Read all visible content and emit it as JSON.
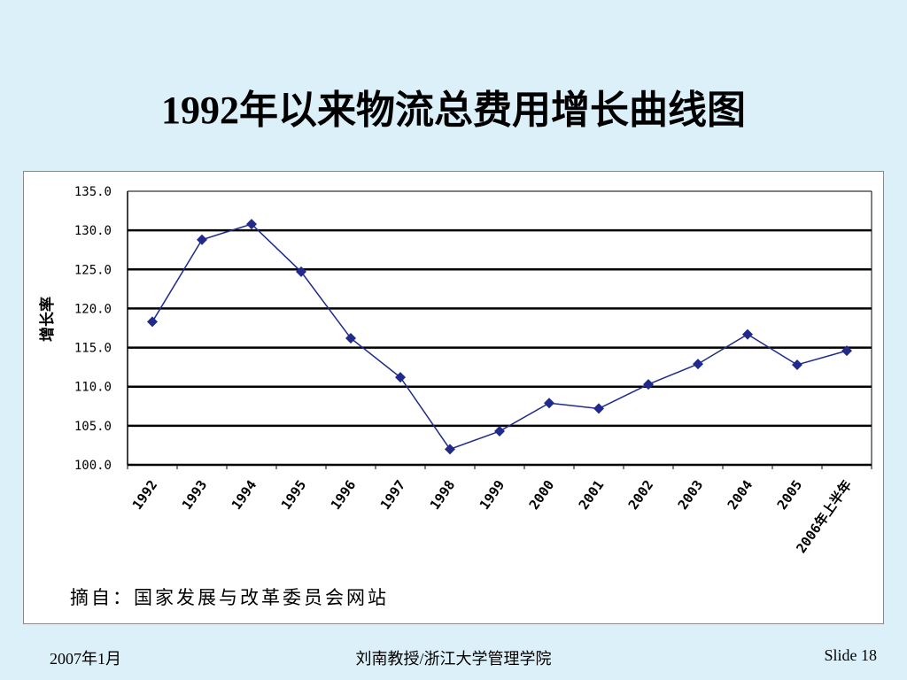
{
  "slide": {
    "title": "1992年以来物流总费用增长曲线图",
    "footer_left": "2007年1月",
    "footer_center": "刘南教授/浙江大学管理学院",
    "footer_right": "Slide 18"
  },
  "chart_data": {
    "type": "line",
    "title": "",
    "xlabel": "",
    "ylabel": "增长率",
    "categories": [
      "1992",
      "1993",
      "1994",
      "1995",
      "1996",
      "1997",
      "1998",
      "1999",
      "2000",
      "2001",
      "2002",
      "2003",
      "2004",
      "2005",
      "2006年上半年"
    ],
    "series": [
      {
        "values": [
          118.3,
          128.8,
          130.8,
          124.7,
          116.2,
          111.2,
          102.0,
          104.3,
          107.9,
          107.2,
          110.3,
          112.9,
          116.7,
          112.8,
          114.6
        ]
      }
    ],
    "ylim": [
      100.0,
      135.0
    ],
    "yticks": [
      "135.0",
      "130.0",
      "125.0",
      "120.0",
      "115.0",
      "110.0",
      "105.0",
      "100.0"
    ],
    "grid": true,
    "line_color": "#1f2a8c",
    "marker": "diamond",
    "source_note": "摘自：国家发展与改革委员会网站"
  }
}
